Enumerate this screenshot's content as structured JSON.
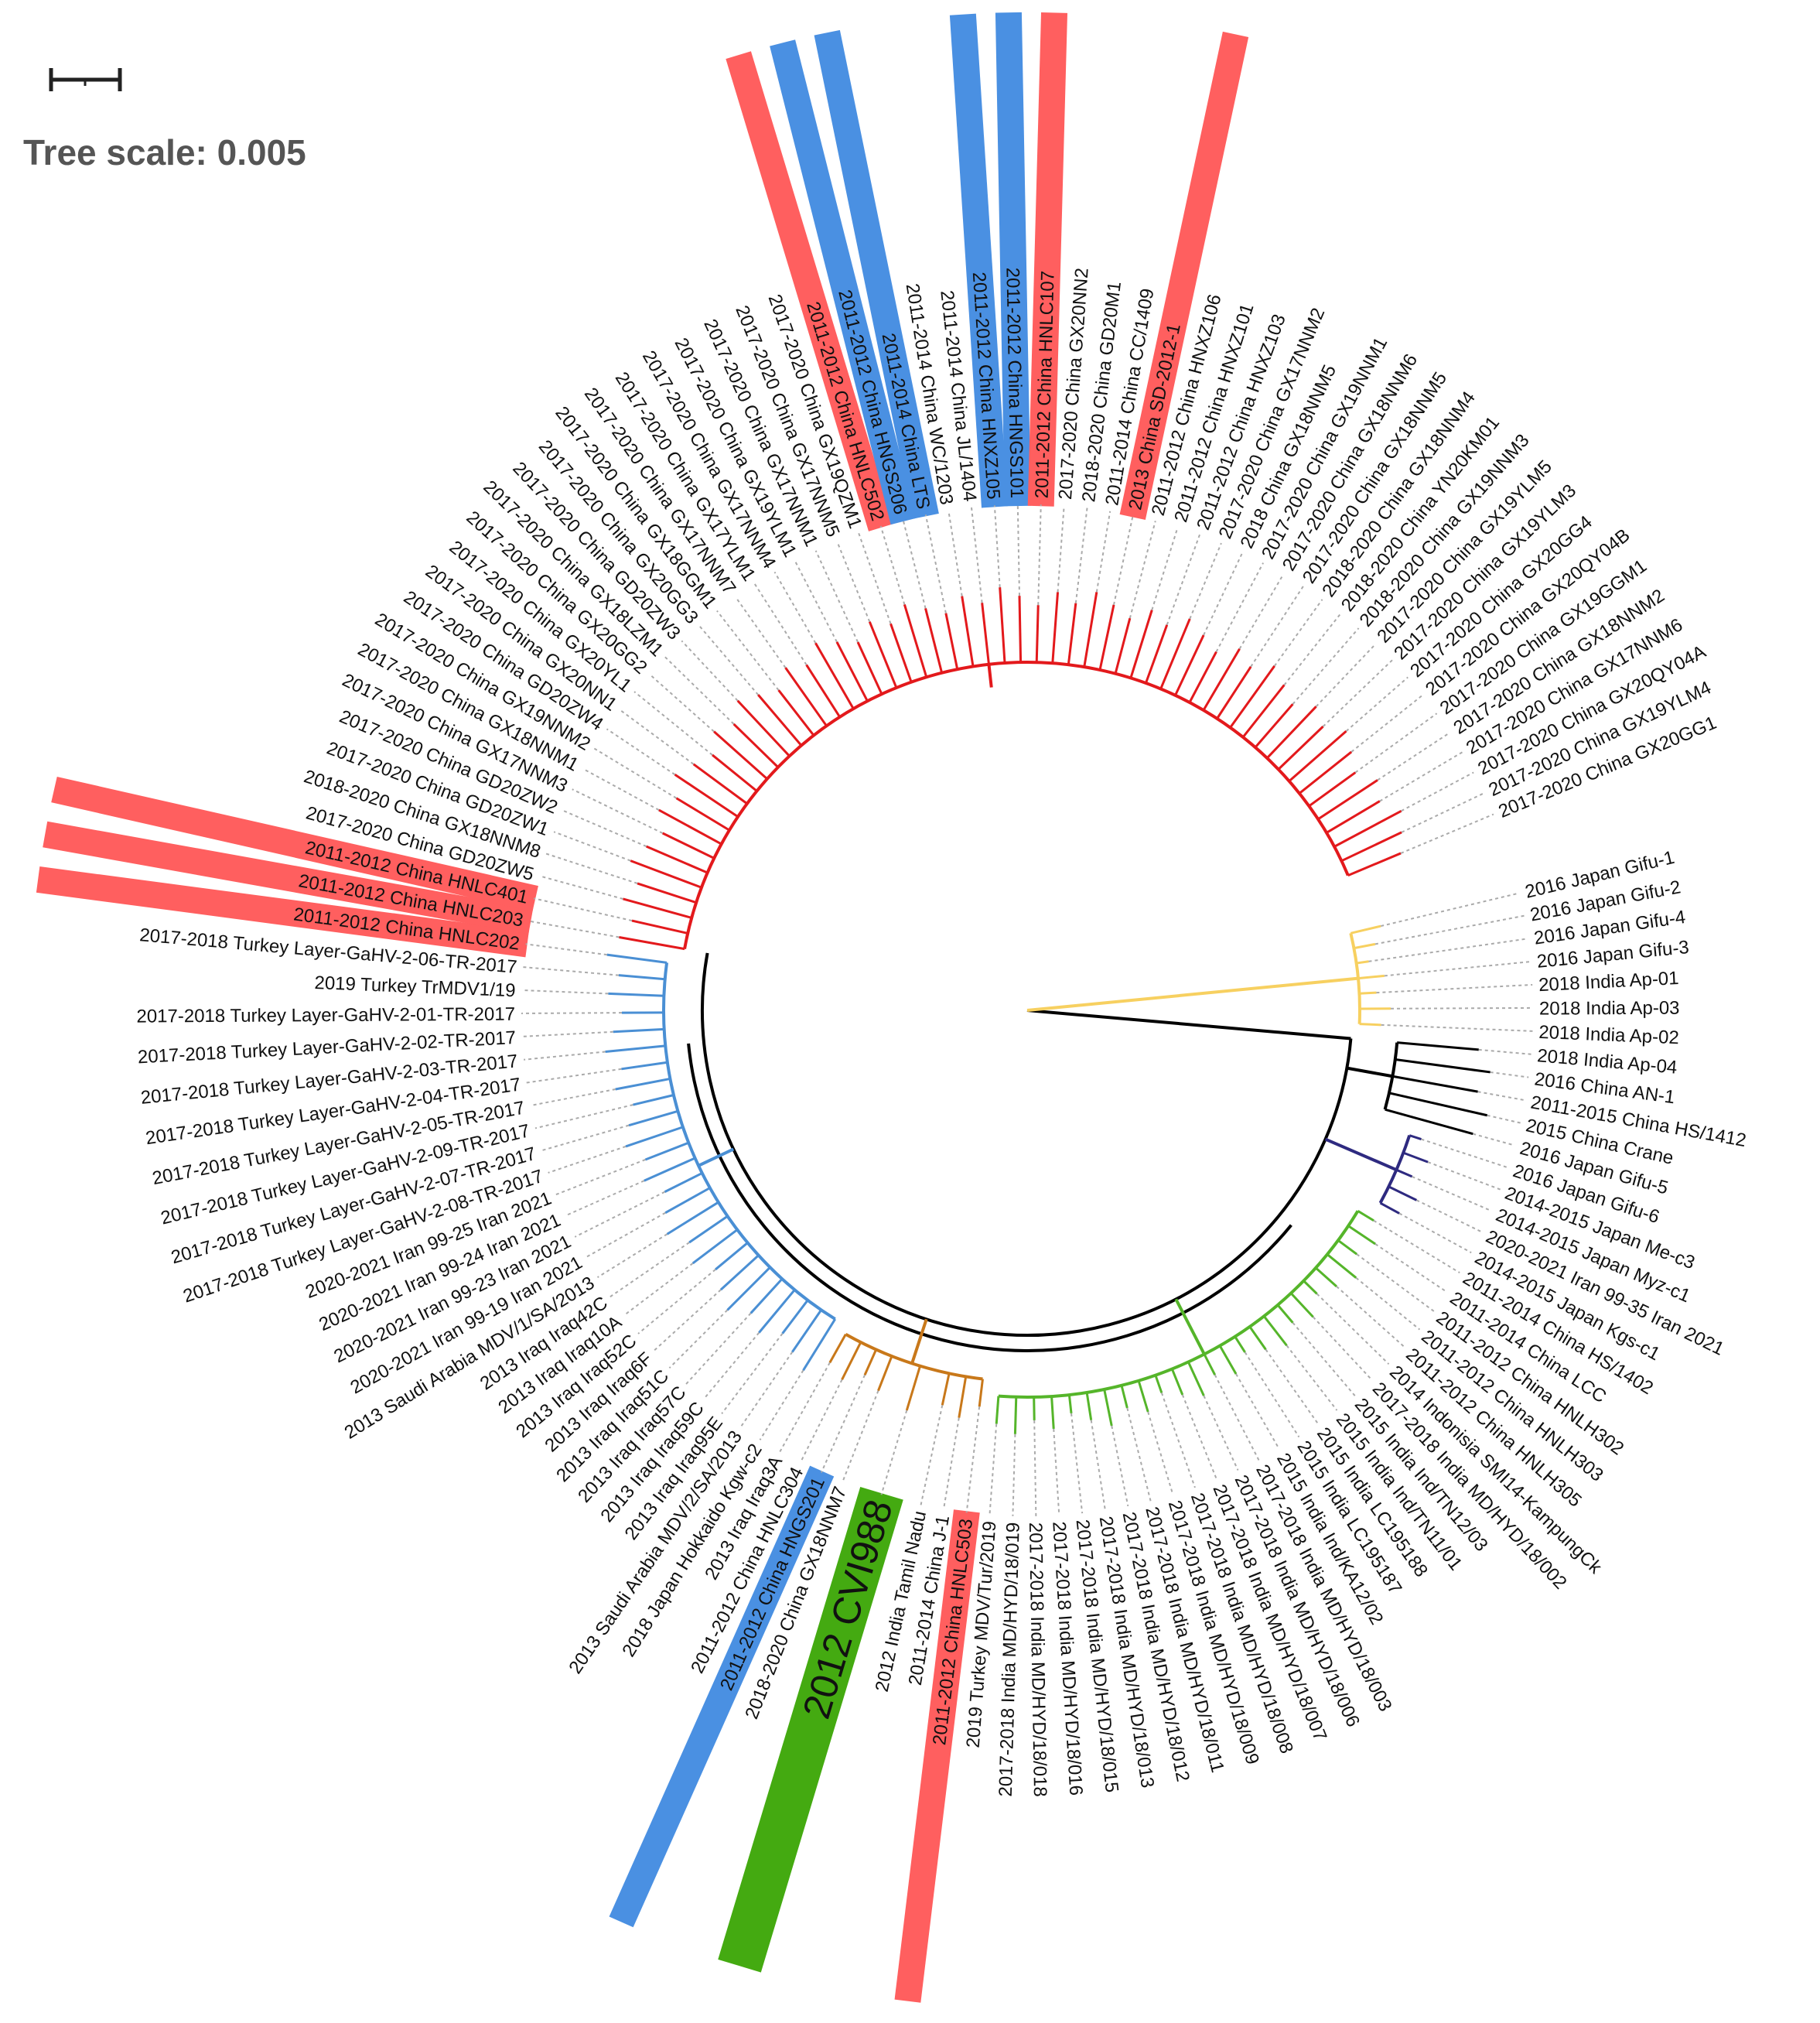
{
  "scale": {
    "title": "Tree scale: 0.005"
  },
  "palette": {
    "red_band": "#ff5f5f",
    "blue_band": "#4a90e2",
    "green_band": "#44aa11",
    "red": "#e3191c",
    "blue": "#4a8fd4",
    "green": "#55b52a",
    "yellow": "#f7d060",
    "purple": "#2e2a80",
    "orange": "#c8781a",
    "black": "#000000",
    "dotted": "#aaaaaa"
  },
  "tree": {
    "clades": [
      {
        "name": "yellow-clade",
        "from": 0,
        "to": 6,
        "color": "yellow"
      },
      {
        "name": "black-clade",
        "from": 7,
        "to": 11,
        "color": "black"
      },
      {
        "name": "purple-clade",
        "from": 12,
        "to": 16,
        "color": "purple"
      },
      {
        "name": "green-clade",
        "from": 17,
        "to": 41,
        "color": "green"
      },
      {
        "name": "orange-clade",
        "from": 42,
        "to": 49,
        "color": "orange"
      },
      {
        "name": "blue-clade",
        "from": 50,
        "to": 75,
        "color": "blue"
      },
      {
        "name": "red-clade",
        "from": 76,
        "to": 132,
        "color": "red"
      }
    ],
    "leaves": [
      {
        "label": "2016 Japan Gifu-1"
      },
      {
        "label": "2016 Japan Gifu-2"
      },
      {
        "label": "2016 Japan Gifu-4"
      },
      {
        "label": "2016 Japan Gifu-3"
      },
      {
        "label": "2018 India Ap-01"
      },
      {
        "label": "2018 India Ap-03"
      },
      {
        "label": "2018 India Ap-02"
      },
      {
        "label": "2018 India Ap-04"
      },
      {
        "label": "2016 China AN-1"
      },
      {
        "label": "2011-2015 China HS/1412"
      },
      {
        "label": "2015 China Crane"
      },
      {
        "label": "2016 Japan Gifu-5"
      },
      {
        "label": "2016 Japan Gifu-6"
      },
      {
        "label": "2014-2015 Japan Me-c3"
      },
      {
        "label": "2014-2015 Japan Myz-c1"
      },
      {
        "label": "2020-2021 Iran 99-35 Iran 2021"
      },
      {
        "label": "2014-2015 Japan Kgs-c1"
      },
      {
        "label": "2011-2014 China HS/1402"
      },
      {
        "label": "2011-2014 China LCC"
      },
      {
        "label": "2011-2012 China HNLH302"
      },
      {
        "label": "2011-2012 China HNLH303"
      },
      {
        "label": "2011-2012 China HNLH305"
      },
      {
        "label": "2014 Indonisia SMI14-KampungCk"
      },
      {
        "label": "2017-2018 India MD/HYD/18/002"
      },
      {
        "label": "2015 India Ind/TN12/03"
      },
      {
        "label": "2015 India Ind/TN11/01"
      },
      {
        "label": "2015 India LC195188"
      },
      {
        "label": "2015 India LC195187"
      },
      {
        "label": "2015 India Ind/KA12/02"
      },
      {
        "label": "2017-2018 India MD/HYD/18/003"
      },
      {
        "label": "2017-2018 India MD/HYD/18/006"
      },
      {
        "label": "2017-2018 India MD/HYD/18/007"
      },
      {
        "label": "2017-2018 India MD/HYD/18/008"
      },
      {
        "label": "2017-2018 India MD/HYD/18/009"
      },
      {
        "label": "2017-2018 India MD/HYD/18/011"
      },
      {
        "label": "2017-2018 India MD/HYD/18/012"
      },
      {
        "label": "2017-2018 India MD/HYD/18/013"
      },
      {
        "label": "2017-2018 India MD/HYD/18/015"
      },
      {
        "label": "2017-2018 India MD/HYD/18/016"
      },
      {
        "label": "2017-2018 India MD/HYD/18/018"
      },
      {
        "label": "2017-2018 India MD/HYD/18/019"
      },
      {
        "label": "2019 Turkey MDV/Tur/2019"
      },
      {
        "label": "2011-2012 China HNLC503",
        "hl": "red_band"
      },
      {
        "label": "2011-2014 China J-1"
      },
      {
        "label": "2012 India Tamil Nadu"
      },
      {
        "label": "2012 CVI988",
        "hl": "green_band",
        "big": true
      },
      {
        "label": "2018-2020 China GX18NNM7"
      },
      {
        "label": "2011-2012 China HNGS201",
        "hl": "blue_band"
      },
      {
        "label": "2011-2012 China HNLC304"
      },
      {
        "label": "2013 Iraq Iraq3A"
      },
      {
        "label": "2018 Japan Hokkaido Kgw-c2"
      },
      {
        "label": "2013 Saudi Arabia MDV/2/SA/2013"
      },
      {
        "label": "2013 Iraq Iraq95E"
      },
      {
        "label": "2013 Iraq Iraq59C"
      },
      {
        "label": "2013 Iraq Iraq57C"
      },
      {
        "label": "2013 Iraq Iraq51C"
      },
      {
        "label": "2013 Iraq Iraq6F"
      },
      {
        "label": "2013 Iraq Iraq52C"
      },
      {
        "label": "2013 Iraq Iraq10A"
      },
      {
        "label": "2013 Iraq Iraq42C"
      },
      {
        "label": "2013 Saudi Arabia MDV/1/SA/2013"
      },
      {
        "label": "2020-2021 Iran 99-19 Iran 2021"
      },
      {
        "label": "2020-2021 Iran 99-23 Iran 2021"
      },
      {
        "label": "2020-2021 Iran 99-24 Iran 2021"
      },
      {
        "label": "2020-2021 Iran 99-25 Iran 2021"
      },
      {
        "label": "2017-2018 Turkey Layer-GaHV-2-08-TR-2017"
      },
      {
        "label": "2017-2018 Turkey Layer-GaHV-2-07-TR-2017"
      },
      {
        "label": "2017-2018 Turkey Layer-GaHV-2-09-TR-2017"
      },
      {
        "label": "2017-2018 Turkey Layer-GaHV-2-05-TR-2017"
      },
      {
        "label": "2017-2018 Turkey Layer-GaHV-2-04-TR-2017"
      },
      {
        "label": "2017-2018 Turkey Layer-GaHV-2-03-TR-2017"
      },
      {
        "label": "2017-2018 Turkey Layer-GaHV-2-02-TR-2017"
      },
      {
        "label": "2017-2018 Turkey Layer-GaHV-2-01-TR-2017"
      },
      {
        "label": "2019 Turkey TrMDV1/19"
      },
      {
        "label": "2017-2018 Turkey Layer-GaHV-2-06-TR-2017"
      },
      {
        "label": "2011-2012 China HNLC202",
        "hl": "red_band"
      },
      {
        "label": "2011-2012 China HNLC203",
        "hl": "red_band"
      },
      {
        "label": "2011-2012 China HNLC401",
        "hl": "red_band"
      },
      {
        "label": "2017-2020 China GD20ZW5"
      },
      {
        "label": "2018-2020 China GX18NNM8"
      },
      {
        "label": "2017-2020 China GD20ZW1"
      },
      {
        "label": "2017-2020 China GD20ZW2"
      },
      {
        "label": "2017-2020 China GX17NNM3"
      },
      {
        "label": "2017-2020 China GX18NNM1"
      },
      {
        "label": "2017-2020 China GX19NNM2"
      },
      {
        "label": "2017-2020 China GD20ZW4"
      },
      {
        "label": "2017-2020 China GX20NN1"
      },
      {
        "label": "2017-2020 China GX20YL1"
      },
      {
        "label": "2017-2020 China GX20GG2"
      },
      {
        "label": "2017-2020 China GX18LZM1"
      },
      {
        "label": "2017-2020 China GD20ZW3"
      },
      {
        "label": "2017-2020 China GX20GG3"
      },
      {
        "label": "2017-2020 China GX18GGM1"
      },
      {
        "label": "2017-2020 China GX17NNM7"
      },
      {
        "label": "2017-2020 China GX17YLM1"
      },
      {
        "label": "2017-2020 China GX17NNM4"
      },
      {
        "label": "2017-2020 China GX19YLM1"
      },
      {
        "label": "2017-2020 China GX17NNM1"
      },
      {
        "label": "2017-2020 China GX17NNM5"
      },
      {
        "label": "2017-2020 China GX19QZM1"
      },
      {
        "label": "2011-2012 China HNLC502",
        "hl": "red_band"
      },
      {
        "label": "2011-2012 China HNGS206",
        "hl": "blue_band"
      },
      {
        "label": "2011-2014 China LTS",
        "hl": "blue_band"
      },
      {
        "label": "2011-2014 China WC/1203"
      },
      {
        "label": "2011-2014 China JL/1404"
      },
      {
        "label": "2011-2012 China HNXZ105",
        "hl": "blue_band"
      },
      {
        "label": "2011-2012 China HNGS101",
        "hl": "blue_band"
      },
      {
        "label": "2011-2012 China HNLC107",
        "hl": "red_band"
      },
      {
        "label": "2017-2020 China GX20NN2"
      },
      {
        "label": "2018-2020 China GD20M1"
      },
      {
        "label": "2011-2014 China CC/1409"
      },
      {
        "label": "2013 China SD-2012-1",
        "hl": "red_band"
      },
      {
        "label": "2011-2012 China HNXZ106"
      },
      {
        "label": "2011-2012 China HNXZ101"
      },
      {
        "label": "2011-2012 China HNXZ103"
      },
      {
        "label": "2017-2020 China GX17NNM2"
      },
      {
        "label": "2018 China GX18NNM5"
      },
      {
        "label": "2017-2020 China GX19NNM1"
      },
      {
        "label": "2017-2020 China GX18NNM6"
      },
      {
        "label": "2017-2020 China GX18NNM5"
      },
      {
        "label": "2018-2020 China GX18NNM4"
      },
      {
        "label": "2018-2020 China YN20KM01"
      },
      {
        "label": "2018-2020 China GX19NNM3"
      },
      {
        "label": "2017-2020 China GX19YLM5"
      },
      {
        "label": "2017-2020 China GX19YLM3"
      },
      {
        "label": "2017-2020 China GX20GG4"
      },
      {
        "label": "2017-2020 China GX20QY04B"
      },
      {
        "label": "2017-2020 China GX19GGM1"
      },
      {
        "label": "2017-2020 China GX18NNM2"
      },
      {
        "label": "2017-2020 China GX17NNM6"
      },
      {
        "label": "2017-2020 China GX20QY04A"
      },
      {
        "label": "2017-2020 China GX19YLM4"
      },
      {
        "label": "2017-2020 China GX20GG1"
      }
    ]
  }
}
